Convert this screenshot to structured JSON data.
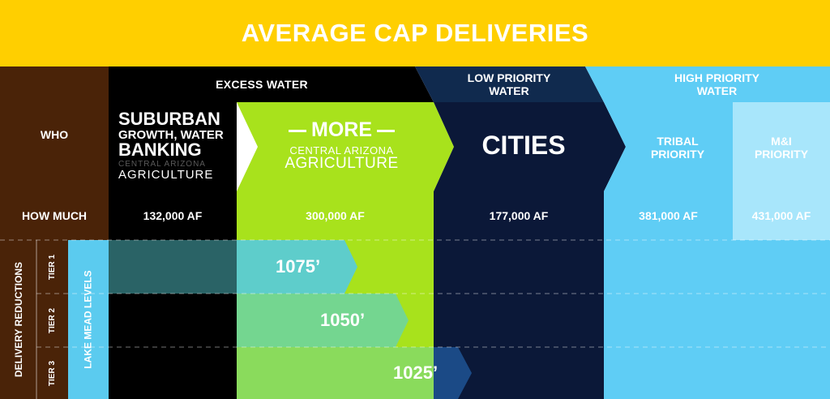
{
  "title": "AVERAGE CAP DELIVERIES",
  "colors": {
    "title_bg": "#FFCF00",
    "row_header_bg": "#4A2308",
    "excess_black": "#000000",
    "more_green": "#A8E21C",
    "cities_navy": "#0B1838",
    "low_priority_header": "#102A4E",
    "high_priority_header": "#5FCDF5",
    "tribal": "#5FCDF5",
    "mi": "#A8E6FB",
    "lake_levels": "#5BCBEF",
    "tier1_arrow": "#5ECDCB",
    "tier2_arrow": "#74D690",
    "tier3_arrow": "#8ADB5C"
  },
  "row_labels": {
    "who": "WHO",
    "how_much": "HOW MUCH",
    "delivery_reductions": "DELIVERY REDUCTIONS",
    "lake_mead_levels": "LAKE MEAD LEVELS",
    "tiers": [
      "TIER 1",
      "TIER 2",
      "TIER 3"
    ]
  },
  "headers": {
    "excess": "EXCESS WATER",
    "low_priority": [
      "LOW PRIORITY",
      "WATER"
    ],
    "high_priority": [
      "HIGH PRIORITY",
      "WATER"
    ]
  },
  "who": {
    "suburban": [
      "SUBURBAN",
      "GROWTH, WATER",
      "BANKING"
    ],
    "suburban_sub": [
      "CENTRAL ARIZONA",
      "AGRICULTURE"
    ],
    "more": "MORE",
    "more_sub": [
      "CENTRAL ARIZONA",
      "AGRICULTURE"
    ],
    "cities": "CITIES",
    "tribal": [
      "TRIBAL",
      "PRIORITY"
    ],
    "mi": [
      "M&I",
      "PRIORITY"
    ]
  },
  "how_much": [
    "132,000 AF",
    "300,000 AF",
    "177,000 AF",
    "381,000 AF",
    "431,000 AF"
  ],
  "lake_levels": [
    "1075’",
    "1050’",
    "1025’"
  ]
}
